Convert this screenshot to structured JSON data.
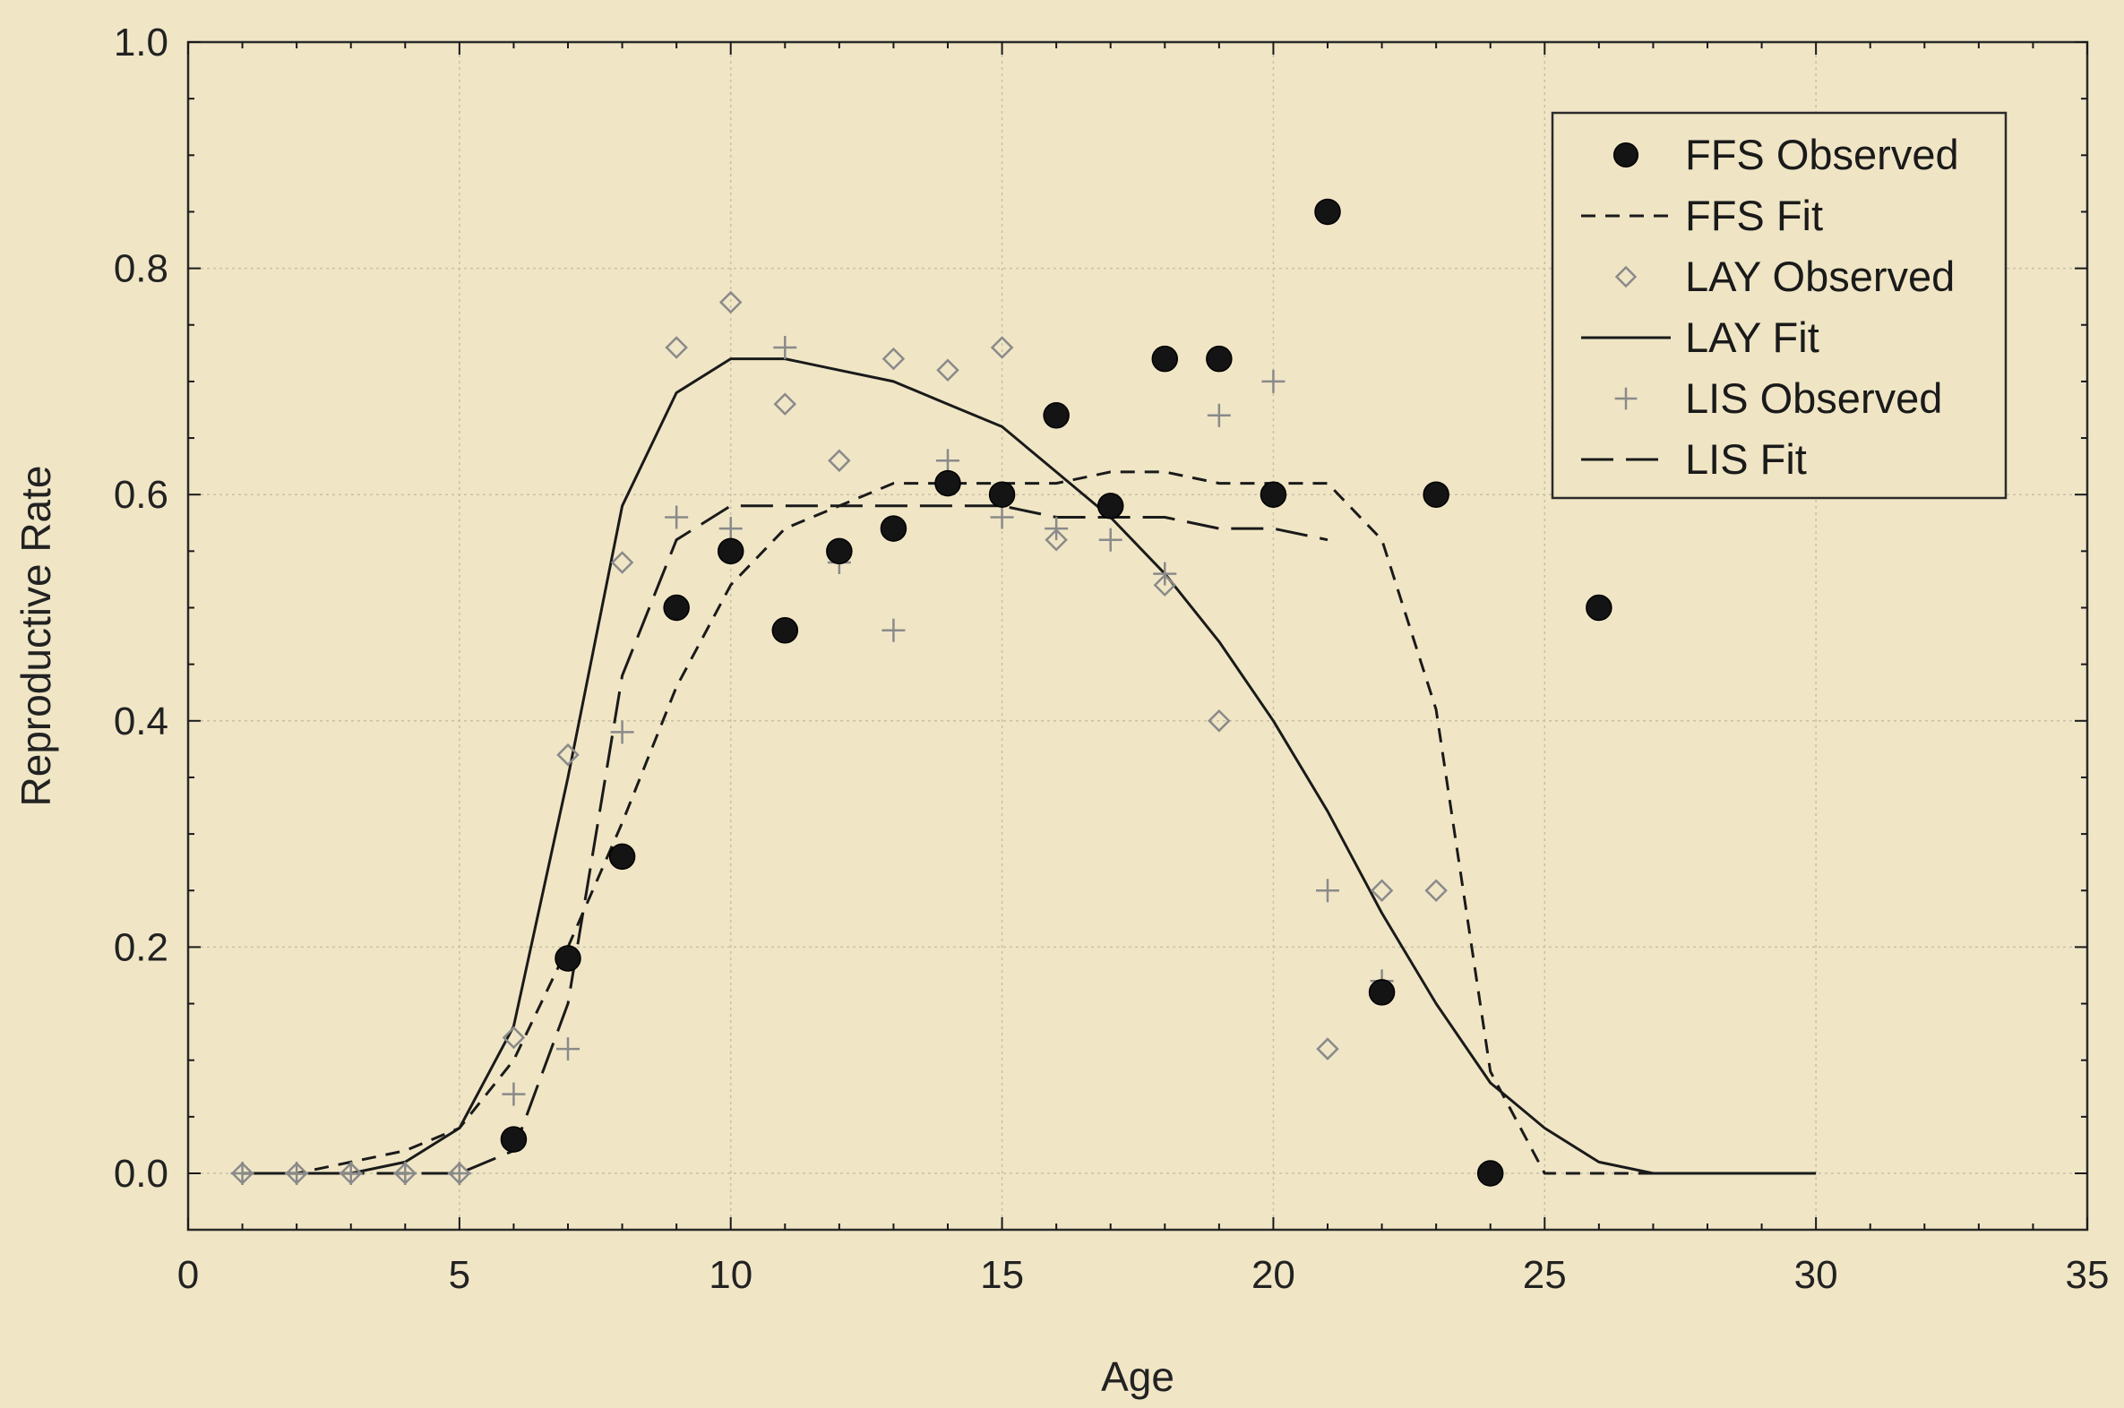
{
  "chart_data": {
    "type": "scatter",
    "xlabel": "Age",
    "ylabel": "Reproductive Rate",
    "xlim": [
      0,
      35
    ],
    "ylim": [
      -0.05,
      1.0
    ],
    "xticks": [
      0,
      5,
      10,
      15,
      20,
      25,
      30,
      35
    ],
    "yticks": [
      0.0,
      0.2,
      0.4,
      0.6,
      0.8,
      1.0
    ],
    "xtick_labels": [
      "0",
      "5",
      "10",
      "15",
      "20",
      "25",
      "30",
      "35"
    ],
    "ytick_labels": [
      "0.0",
      "0.2",
      "0.4",
      "0.6",
      "0.8",
      "1.0"
    ],
    "grid": true,
    "legend_position": "top-right",
    "colors": {
      "background": "#f0e6c6",
      "ink": "#1a1a1a",
      "light_marker": "#8a8a8a",
      "grid": "#c9c0a6"
    },
    "series": [
      {
        "name": "FFS Observed",
        "kind": "points",
        "marker": "filled-circle",
        "x": [
          6,
          7,
          8,
          9,
          10,
          11,
          12,
          13,
          14,
          15,
          16,
          17,
          18,
          19,
          20,
          21,
          22,
          23,
          24,
          26
        ],
        "y": [
          0.03,
          0.19,
          0.28,
          0.5,
          0.55,
          0.48,
          0.55,
          0.57,
          0.61,
          0.6,
          0.67,
          0.59,
          0.72,
          0.72,
          0.6,
          0.85,
          0.16,
          0.6,
          0.0,
          0.5
        ]
      },
      {
        "name": "FFS Fit",
        "kind": "line",
        "dash": "short",
        "x": [
          1,
          2,
          3,
          4,
          5,
          6,
          7,
          8,
          9,
          10,
          11,
          12,
          13,
          14,
          15,
          16,
          17,
          18,
          19,
          20,
          21,
          22,
          23,
          24,
          25,
          26,
          27,
          28,
          29,
          30
        ],
        "y": [
          0.0,
          0.0,
          0.01,
          0.02,
          0.04,
          0.1,
          0.2,
          0.31,
          0.43,
          0.52,
          0.57,
          0.59,
          0.61,
          0.61,
          0.61,
          0.61,
          0.62,
          0.62,
          0.61,
          0.61,
          0.61,
          0.56,
          0.41,
          0.09,
          0.0,
          0.0,
          0.0,
          0.0,
          0.0,
          0.0
        ]
      },
      {
        "name": "LAY Observed",
        "kind": "points",
        "marker": "open-diamond",
        "x": [
          1,
          2,
          3,
          4,
          5,
          6,
          7,
          8,
          9,
          10,
          11,
          12,
          13,
          14,
          15,
          16,
          17,
          18,
          19,
          20,
          21,
          22,
          23,
          24
        ],
        "y": [
          0.0,
          0.0,
          0.0,
          0.0,
          0.0,
          0.12,
          0.37,
          0.54,
          0.73,
          0.77,
          0.68,
          0.63,
          0.72,
          0.71,
          0.73,
          0.56,
          0.59,
          0.52,
          0.4,
          0.6,
          0.11,
          0.25,
          0.25,
          0.0
        ]
      },
      {
        "name": "LAY Fit",
        "kind": "line",
        "dash": "solid",
        "x": [
          1,
          2,
          3,
          4,
          5,
          6,
          7,
          8,
          9,
          10,
          11,
          12,
          13,
          14,
          15,
          16,
          17,
          18,
          19,
          20,
          21,
          22,
          23,
          24,
          25,
          26,
          27,
          28,
          29,
          30
        ],
        "y": [
          0.0,
          0.0,
          0.0,
          0.01,
          0.04,
          0.13,
          0.35,
          0.59,
          0.69,
          0.72,
          0.72,
          0.71,
          0.7,
          0.68,
          0.66,
          0.62,
          0.58,
          0.53,
          0.47,
          0.4,
          0.32,
          0.23,
          0.15,
          0.08,
          0.04,
          0.01,
          0.0,
          0.0,
          0.0,
          0.0
        ]
      },
      {
        "name": "LIS Observed",
        "kind": "points",
        "marker": "plus",
        "x": [
          1,
          2,
          3,
          4,
          5,
          6,
          7,
          8,
          9,
          10,
          11,
          12,
          13,
          14,
          15,
          16,
          17,
          18,
          19,
          20,
          21,
          22
        ],
        "y": [
          0.0,
          0.0,
          0.0,
          0.0,
          0.0,
          0.07,
          0.11,
          0.39,
          0.58,
          0.57,
          0.73,
          0.54,
          0.48,
          0.63,
          0.58,
          0.57,
          0.56,
          0.53,
          0.67,
          0.7,
          0.25,
          0.17
        ]
      },
      {
        "name": "LIS Fit",
        "kind": "line",
        "dash": "long",
        "x": [
          1,
          2,
          3,
          4,
          5,
          6,
          7,
          8,
          9,
          10,
          11,
          12,
          13,
          14,
          15,
          16,
          17,
          18,
          19,
          20,
          21
        ],
        "y": [
          0.0,
          0.0,
          0.0,
          0.0,
          0.0,
          0.02,
          0.15,
          0.44,
          0.56,
          0.59,
          0.59,
          0.59,
          0.59,
          0.59,
          0.59,
          0.58,
          0.58,
          0.58,
          0.57,
          0.57,
          0.56
        ]
      }
    ]
  }
}
